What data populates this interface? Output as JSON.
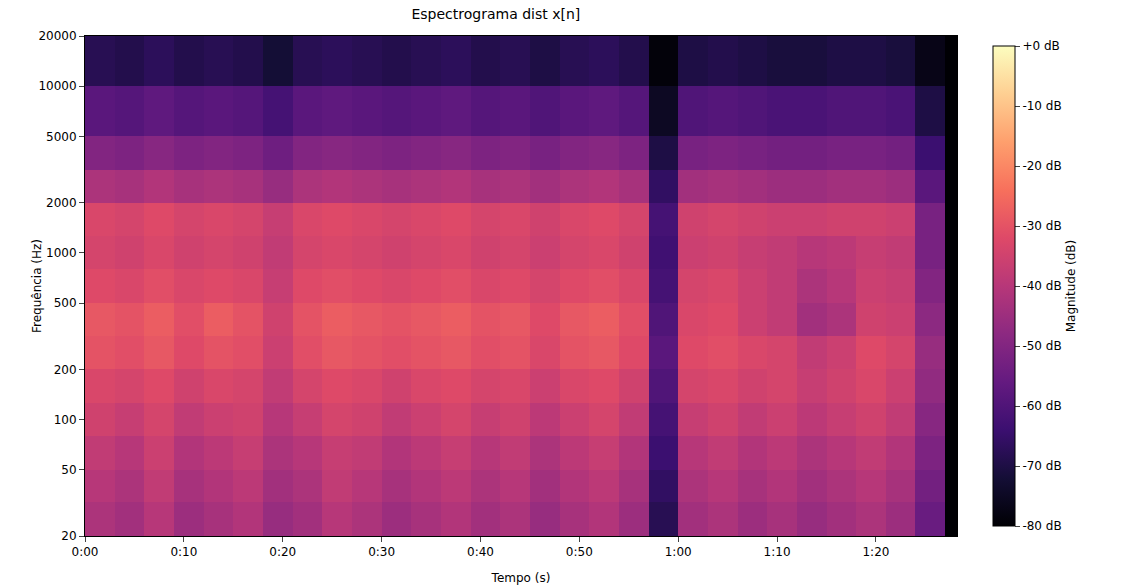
{
  "chart_data": {
    "type": "heatmap",
    "title": "Espectrograma dist x[n]",
    "x_label": "Tempo (s)",
    "y_label": "Frequência (Hz)",
    "colorbar_title": "Magnitude (dB)",
    "log": "y",
    "grid": false,
    "xlim": [
      0,
      88.2
    ],
    "xticks": [
      {
        "value": 0,
        "label": "0:00"
      },
      {
        "value": 10,
        "label": "0:10"
      },
      {
        "value": 20,
        "label": "0:20"
      },
      {
        "value": 30,
        "label": "0:30"
      },
      {
        "value": 40,
        "label": "0:40"
      },
      {
        "value": 50,
        "label": "0:50"
      },
      {
        "value": 60,
        "label": "1:00"
      },
      {
        "value": 70,
        "label": "1:10"
      },
      {
        "value": 80,
        "label": "1:20"
      }
    ],
    "ylim": [
      20,
      20000
    ],
    "yticks": [
      20,
      50,
      100,
      200,
      500,
      1000,
      2000,
      5000,
      10000,
      20000
    ],
    "zlim": [
      -80,
      0
    ],
    "zticks": [
      {
        "value": 0,
        "label": "+0 dB"
      },
      {
        "value": -10,
        "label": "-10 dB"
      },
      {
        "value": -20,
        "label": "-20 dB"
      },
      {
        "value": -30,
        "label": "-30 dB"
      },
      {
        "value": -40,
        "label": "-40 dB"
      },
      {
        "value": -50,
        "label": "-50 dB"
      },
      {
        "value": -60,
        "label": "-60 dB"
      },
      {
        "value": -70,
        "label": "-70 dB"
      },
      {
        "value": -80,
        "label": "-80 dB"
      }
    ],
    "x_edges": [
      0,
      3,
      6,
      9,
      12,
      15,
      18,
      21,
      24,
      27,
      30,
      33,
      36,
      39,
      42,
      45,
      48,
      51,
      54,
      57,
      60,
      63,
      66,
      69,
      72,
      75,
      78,
      81,
      84,
      87
    ],
    "y_edges": [
      20,
      32,
      50,
      80,
      126,
      200,
      316,
      500,
      800,
      1260,
      2000,
      3160,
      5000,
      10000,
      20000
    ],
    "cells": [
      [
        -42,
        -44,
        -40,
        -45,
        -43,
        -41,
        -46,
        -44,
        -40,
        -42,
        -45,
        -43,
        -41,
        -44,
        -42,
        -46,
        -43,
        -41,
        -45,
        -68,
        -44,
        -42,
        -45,
        -43,
        -46,
        -44,
        -42,
        -45,
        -55
      ],
      [
        -40,
        -42,
        -38,
        -43,
        -41,
        -39,
        -44,
        -42,
        -38,
        -40,
        -43,
        -41,
        -39,
        -42,
        -40,
        -44,
        -41,
        -39,
        -43,
        -66,
        -42,
        -40,
        -43,
        -41,
        -44,
        -42,
        -40,
        -43,
        -53
      ],
      [
        -38,
        -40,
        -36,
        -41,
        -39,
        -37,
        -42,
        -40,
        -37,
        -38,
        -41,
        -39,
        -37,
        -40,
        -38,
        -42,
        -39,
        -37,
        -41,
        -64,
        -40,
        -38,
        -41,
        -39,
        -42,
        -40,
        -38,
        -41,
        -51
      ],
      [
        -35,
        -37,
        -34,
        -38,
        -36,
        -35,
        -40,
        -37,
        -34,
        -35,
        -38,
        -36,
        -34,
        -37,
        -35,
        -39,
        -36,
        -34,
        -38,
        -62,
        -37,
        -35,
        -38,
        -36,
        -39,
        -37,
        -35,
        -38,
        -49
      ],
      [
        -33,
        -34,
        -32,
        -35,
        -33,
        -34,
        -38,
        -34,
        -32,
        -33,
        -35,
        -33,
        -32,
        -34,
        -33,
        -36,
        -33,
        -32,
        -35,
        -60,
        -34,
        -33,
        -35,
        -34,
        -37,
        -35,
        -33,
        -36,
        -47
      ],
      [
        -30,
        -31,
        -29,
        -32,
        -30,
        -31,
        -36,
        -31,
        -29,
        -30,
        -31,
        -30,
        -29,
        -31,
        -30,
        -33,
        -30,
        -29,
        -32,
        -58,
        -32,
        -31,
        -33,
        -34,
        -38,
        -36,
        -32,
        -34,
        -46
      ],
      [
        -29,
        -30,
        -28,
        -31,
        -28,
        -30,
        -35,
        -30,
        -28,
        -29,
        -30,
        -29,
        -28,
        -30,
        -29,
        -32,
        -29,
        -28,
        -31,
        -60,
        -33,
        -32,
        -36,
        -38,
        -44,
        -42,
        -35,
        -36,
        -48
      ],
      [
        -32,
        -33,
        -31,
        -33,
        -32,
        -33,
        -37,
        -32,
        -31,
        -32,
        -33,
        -32,
        -31,
        -33,
        -32,
        -34,
        -32,
        -31,
        -33,
        -62,
        -34,
        -33,
        -36,
        -38,
        -42,
        -40,
        -36,
        -37,
        -50
      ],
      [
        -34,
        -35,
        -33,
        -35,
        -34,
        -35,
        -38,
        -34,
        -33,
        -34,
        -35,
        -34,
        -33,
        -35,
        -34,
        -36,
        -34,
        -33,
        -35,
        -63,
        -36,
        -35,
        -37,
        -38,
        -40,
        -39,
        -37,
        -38,
        -52
      ],
      [
        -33,
        -34,
        -32,
        -34,
        -33,
        -34,
        -37,
        -33,
        -32,
        -33,
        -34,
        -33,
        -32,
        -34,
        -33,
        -35,
        -33,
        -32,
        -34,
        -62,
        -35,
        -34,
        -35,
        -36,
        -36,
        -35,
        -35,
        -36,
        -52
      ],
      [
        -42,
        -43,
        -41,
        -43,
        -42,
        -43,
        -46,
        -42,
        -41,
        -42,
        -43,
        -42,
        -41,
        -43,
        -42,
        -44,
        -42,
        -41,
        -43,
        -66,
        -44,
        -43,
        -44,
        -45,
        -45,
        -44,
        -44,
        -45,
        -58
      ],
      [
        -50,
        -51,
        -49,
        -51,
        -50,
        -51,
        -54,
        -50,
        -49,
        -50,
        -51,
        -50,
        -49,
        -51,
        -50,
        -52,
        -50,
        -49,
        -51,
        -70,
        -52,
        -51,
        -52,
        -53,
        -53,
        -52,
        -52,
        -53,
        -64
      ],
      [
        -58,
        -59,
        -57,
        -59,
        -58,
        -59,
        -62,
        -58,
        -57,
        -58,
        -59,
        -58,
        -57,
        -59,
        -58,
        -60,
        -58,
        -57,
        -59,
        -75,
        -60,
        -59,
        -60,
        -61,
        -61,
        -60,
        -60,
        -61,
        -70
      ],
      [
        -68,
        -69,
        -67,
        -69,
        -68,
        -69,
        -72,
        -68,
        -67,
        -68,
        -69,
        -68,
        -67,
        -69,
        -68,
        -70,
        -68,
        -67,
        -69,
        -79,
        -70,
        -69,
        -70,
        -71,
        -71,
        -70,
        -70,
        -71,
        -77
      ]
    ]
  }
}
